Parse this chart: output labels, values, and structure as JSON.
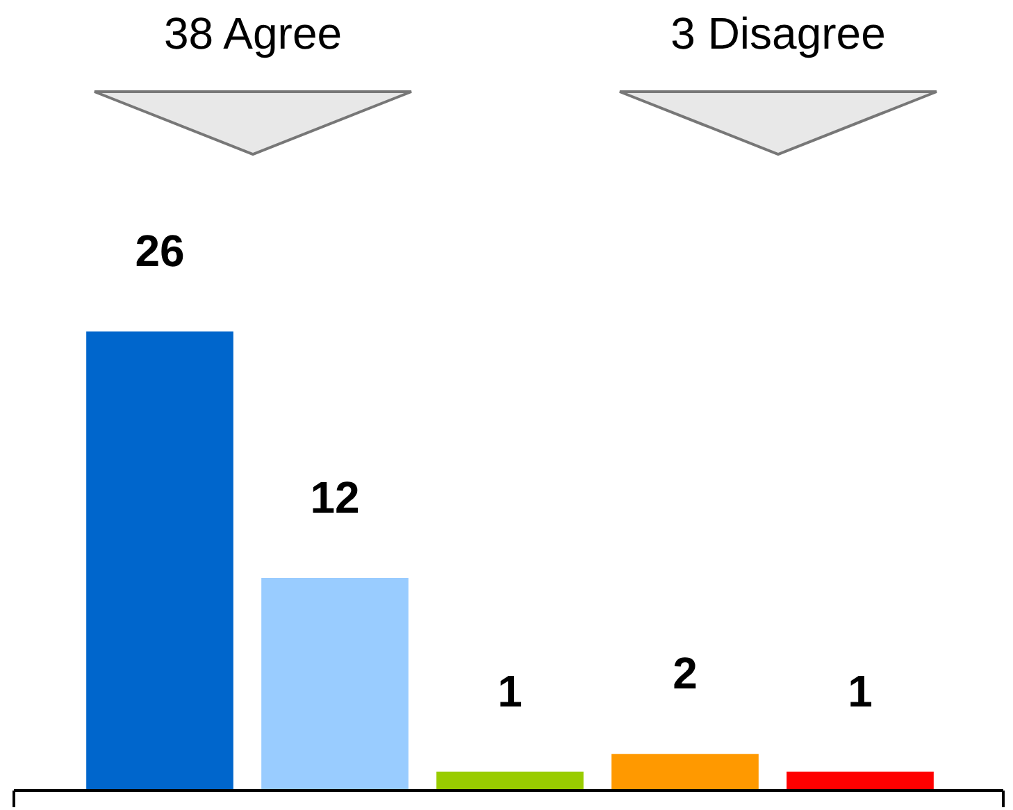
{
  "chart_data": {
    "type": "bar",
    "categories": [
      null,
      null,
      null,
      null,
      null
    ],
    "values": [
      26,
      12,
      1,
      2,
      1
    ],
    "colors": [
      "#0066cc",
      "#99ccff",
      "#99cc00",
      "#ff9900",
      "#ff0000"
    ],
    "data_labels": true,
    "annotations": [
      "38 Agree",
      "3 Disagree"
    ],
    "grid": false,
    "legend": false
  }
}
